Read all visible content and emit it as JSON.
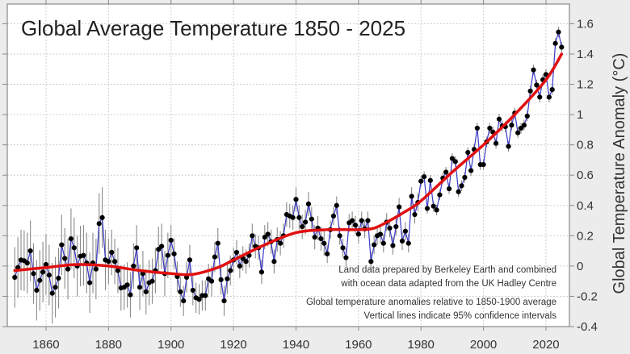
{
  "chart_data": {
    "type": "line",
    "title": "Global Average Temperature 1850 - 2025",
    "xlabel": "",
    "ylabel": "Global Temperature Anomaly  (°C)",
    "xlim": [
      1847.6,
      2027.5
    ],
    "ylim": [
      -0.4,
      1.73
    ],
    "x_ticks": [
      1860,
      1880,
      1900,
      1920,
      1940,
      1960,
      1980,
      2000,
      2020
    ],
    "y_ticks": [
      -0.4,
      -0.2,
      0,
      0.2,
      0.4,
      0.6,
      0.8,
      1,
      1.2,
      1.4,
      1.6
    ],
    "y_tick_labels": [
      "-0.4",
      "-0.2",
      "0",
      "0.2",
      "0.4",
      "0.6",
      "0.8",
      "1",
      "1.2",
      "1.4",
      "1.6"
    ],
    "y_axis_side": "right",
    "grid": true,
    "annotations": [
      "Land data prepared by Berkeley Earth and combined",
      "with ocean data adapted from the UK Hadley Centre",
      "Global temperature anomalies relative to 1850-1900 average",
      "Vertical lines indicate 95% confidence intervals"
    ],
    "colors": {
      "annual": "#3a3ac8",
      "points": "#000000",
      "trend": "#e01010",
      "ci": "#888888",
      "background": "#ececec",
      "plot": "#ffffff"
    },
    "annual": {
      "start_year": 1850,
      "values": [
        -0.075,
        -0.01,
        0.04,
        0.035,
        0.02,
        0.1,
        -0.05,
        -0.16,
        -0.095,
        -0.04,
        0.01,
        -0.06,
        -0.18,
        -0.14,
        -0.08,
        0.14,
        0.05,
        -0.02,
        0.18,
        0.12,
        0.0,
        0.065,
        0.07,
        0.02,
        -0.11,
        0.02,
        -0.02,
        0.28,
        0.32,
        0.04,
        0.03,
        0.09,
        0.03,
        -0.03,
        -0.145,
        -0.14,
        -0.125,
        -0.19,
        0.0,
        0.12,
        -0.14,
        -0.05,
        -0.17,
        -0.11,
        -0.1,
        -0.03,
        0.11,
        0.13,
        -0.05,
        0.07,
        0.17,
        0.08,
        -0.07,
        -0.17,
        -0.23,
        -0.075,
        0.04,
        -0.16,
        -0.21,
        -0.22,
        -0.195,
        -0.195,
        -0.085,
        -0.1,
        0.06,
        0.15,
        -0.09,
        -0.23,
        -0.085,
        -0.03,
        0.04,
        0.09,
        0.0,
        0.05,
        0.03,
        0.07,
        0.2,
        0.13,
        0.12,
        -0.04,
        0.19,
        0.21,
        0.16,
        0.03,
        0.175,
        0.15,
        0.2,
        0.34,
        0.33,
        0.32,
        0.44,
        0.32,
        0.26,
        0.29,
        0.41,
        0.31,
        0.19,
        0.25,
        0.18,
        0.15,
        0.08,
        0.24,
        0.33,
        0.4,
        0.2,
        0.12,
        0.055,
        0.285,
        0.3,
        0.27,
        0.21,
        0.3,
        0.245,
        0.3,
        0.03,
        0.14,
        0.2,
        0.21,
        0.15,
        0.29,
        0.25,
        0.135,
        0.26,
        0.39,
        0.165,
        0.23,
        0.15,
        0.46,
        0.34,
        0.42,
        0.56,
        0.59,
        0.38,
        0.565,
        0.395,
        0.37,
        0.47,
        0.58,
        0.62,
        0.51,
        0.71,
        0.69,
        0.49,
        0.53,
        0.585,
        0.75,
        0.63,
        0.77,
        0.91,
        0.67,
        0.67,
        0.82,
        0.91,
        0.885,
        0.81,
        0.97,
        0.925,
        0.92,
        0.79,
        0.93,
        1.01,
        0.88,
        0.91,
        0.93,
        0.99,
        1.155,
        1.295,
        1.195,
        1.115,
        1.23,
        1.265,
        1.115,
        1.165,
        1.47,
        1.545,
        1.445
      ]
    },
    "ci_half_width": [
      {
        "from": 1850,
        "to": 1879,
        "value": 0.2
      },
      {
        "from": 1880,
        "to": 1899,
        "value": 0.15
      },
      {
        "from": 1900,
        "to": 1919,
        "value": 0.1
      },
      {
        "from": 1920,
        "to": 1949,
        "value": 0.08
      },
      {
        "from": 1950,
        "to": 1979,
        "value": 0.06
      },
      {
        "from": 1980,
        "to": 2025,
        "value": 0.035
      }
    ],
    "trend": {
      "x": [
        1850,
        1860,
        1870,
        1880,
        1890,
        1900,
        1907,
        1915,
        1920,
        1930,
        1940,
        1950,
        1960,
        1965,
        1970,
        1975,
        1980,
        1990,
        2000,
        2010,
        2020,
        2025
      ],
      "y": [
        -0.03,
        -0.01,
        0.01,
        0.0,
        -0.03,
        -0.05,
        -0.055,
        -0.01,
        0.04,
        0.14,
        0.22,
        0.24,
        0.24,
        0.25,
        0.3,
        0.36,
        0.43,
        0.62,
        0.8,
        1.0,
        1.23,
        1.4
      ]
    }
  }
}
